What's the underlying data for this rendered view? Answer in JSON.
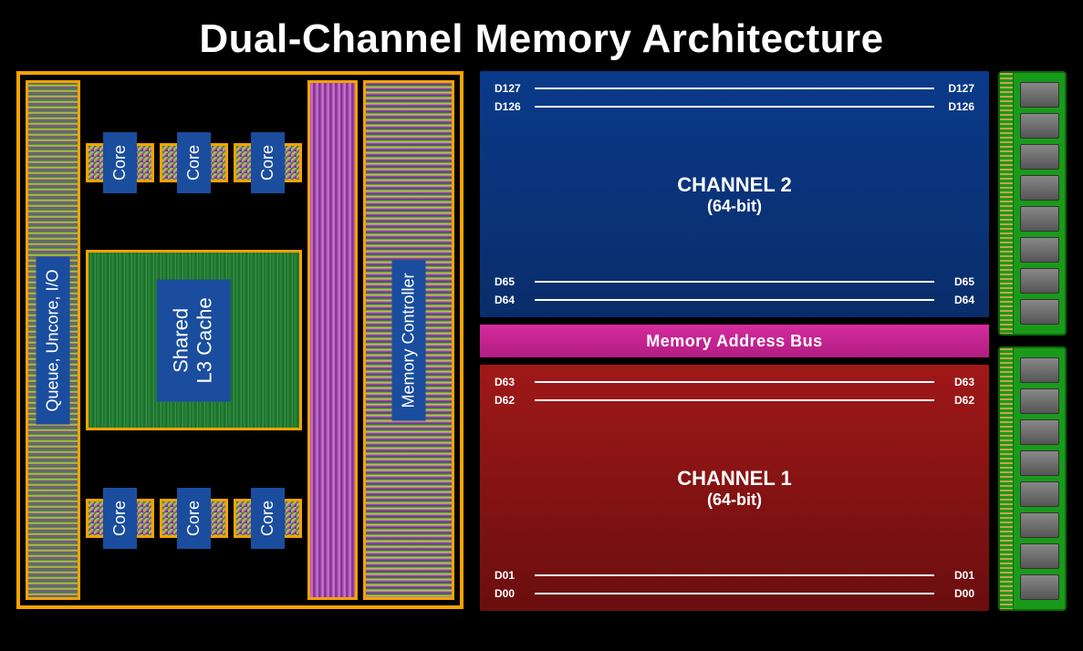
{
  "title": "Dual-Channel Memory Architecture",
  "colors": {
    "background": "#000000",
    "die_border": "#f7a200",
    "label_bg": "#1a4d9e",
    "channel2_bg_top": "#0a3a8a",
    "channel2_bg_bot": "#0a2d6a",
    "channel1_bg_top": "#a01818",
    "channel1_bg_bot": "#6a0e0e",
    "bus_bg": "#d62b9e",
    "dimm_pcb": "#1a9a1a",
    "dimm_chip": "#666666",
    "text": "#ffffff"
  },
  "cpu": {
    "queue_label": "Queue, Uncore, I/O",
    "core_label": "Core",
    "l3_label_line1": "Shared",
    "l3_label_line2": "L3 Cache",
    "memctl_label": "Memory Controller",
    "top_cores": 3,
    "bot_cores": 3
  },
  "channels": {
    "ch2": {
      "name": "CHANNEL 2",
      "bits": "(64-bit)",
      "top_lines": [
        "D127",
        "D126"
      ],
      "bot_lines": [
        "D65",
        "D64"
      ]
    },
    "bus_label": "Memory Address Bus",
    "ch1": {
      "name": "CHANNEL 1",
      "bits": "(64-bit)",
      "top_lines": [
        "D63",
        "D62"
      ],
      "bot_lines": [
        "D01",
        "D00"
      ]
    }
  },
  "dimm": {
    "count": 2,
    "chips_per_dimm": 8
  }
}
